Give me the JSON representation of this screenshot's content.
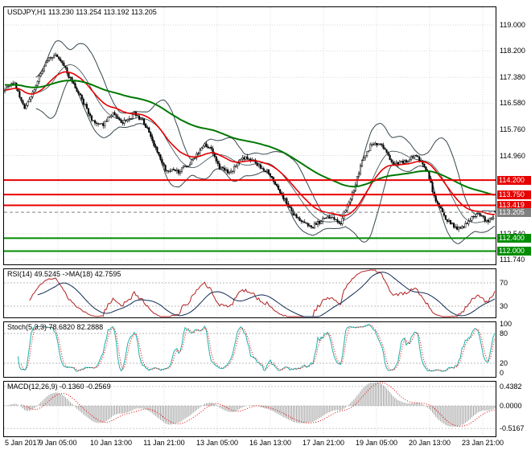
{
  "colors": {
    "background": "#ffffff",
    "panel_border": "#000000",
    "grid": "#d8d8d8",
    "candle": "#000000",
    "candle_bull_fill": "#ffffff",
    "bollinger": "#37474f",
    "ma_fast": "#e60000",
    "ma_slow": "#007800",
    "level_red": "#e80000",
    "level_green": "#008c00",
    "bid_gray": "#808080",
    "rsi_line": "#b22222",
    "rsi_ma": "#102a54",
    "stoch_main": "#20b2aa",
    "stoch_signal": "#e00000",
    "macd_hist": "#a0a0a0",
    "macd_signal": "#e00000",
    "text": "#000000"
  },
  "time_axis": {
    "labels": [
      "5 Jan 2017",
      "9 Jan 05:00",
      "10 Jan 13:00",
      "11 Jan 21:00",
      "13 Jan 05:00",
      "16 Jan 13:00",
      "17 Jan 21:00",
      "19 Jan 05:00",
      "20 Jan 13:00",
      "23 Jan 21:00"
    ]
  },
  "chart_data": [
    {
      "id": "price",
      "type": "candlestick",
      "symbol": "USDJPY",
      "timeframe": "H1",
      "title": "USDJPY,H1 113.230 113.254 113.192 113.205",
      "ohlc": {
        "open": 113.23,
        "high": 113.254,
        "low": 113.192,
        "close": 113.205
      },
      "y_range": [
        111.59,
        119.55
      ],
      "y_ticks": [
        "119.000",
        "118.200",
        "117.380",
        "116.580",
        "115.760",
        "114.960",
        "112.540",
        "111.740"
      ],
      "levels": [
        {
          "price": 114.2,
          "label": "114.200",
          "color": "red"
        },
        {
          "price": 113.75,
          "label": "113.750",
          "color": "red"
        },
        {
          "price": 113.419,
          "label": "113.419",
          "color": "red"
        },
        {
          "price": 113.205,
          "label": "113.205",
          "color": "gray"
        },
        {
          "price": 112.4,
          "label": "112.400",
          "color": "green"
        },
        {
          "price": 112.0,
          "label": "112.000",
          "color": "green"
        }
      ],
      "num_candles": 300,
      "price_path_anchors": [
        [
          0,
          116.95
        ],
        [
          6,
          117.15
        ],
        [
          12,
          116.45
        ],
        [
          19,
          117.2
        ],
        [
          26,
          117.9
        ],
        [
          31,
          118.15
        ],
        [
          37,
          117.65
        ],
        [
          44,
          116.85
        ],
        [
          53,
          116.1
        ],
        [
          60,
          115.95
        ],
        [
          66,
          116.25
        ],
        [
          72,
          116.05
        ],
        [
          79,
          116.3
        ],
        [
          85,
          115.9
        ],
        [
          92,
          115.15
        ],
        [
          98,
          114.55
        ],
        [
          106,
          114.4
        ],
        [
          113,
          114.8
        ],
        [
          121,
          115.35
        ],
        [
          125,
          115.2
        ],
        [
          131,
          114.55
        ],
        [
          138,
          114.45
        ],
        [
          145,
          114.8
        ],
        [
          153,
          114.75
        ],
        [
          160,
          114.55
        ],
        [
          167,
          113.9
        ],
        [
          174,
          113.35
        ],
        [
          181,
          112.9
        ],
        [
          187,
          112.6
        ],
        [
          194,
          112.95
        ],
        [
          199,
          113.1
        ],
        [
          205,
          112.85
        ],
        [
          212,
          113.8
        ],
        [
          218,
          114.9
        ],
        [
          224,
          115.35
        ],
        [
          230,
          115.2
        ],
        [
          236,
          114.75
        ],
        [
          244,
          114.7
        ],
        [
          251,
          114.95
        ],
        [
          258,
          114.55
        ],
        [
          263,
          113.6
        ],
        [
          269,
          112.95
        ],
        [
          276,
          112.7
        ],
        [
          282,
          112.85
        ],
        [
          288,
          113.05
        ],
        [
          294,
          112.9
        ],
        [
          299,
          113.2
        ]
      ],
      "overlays": {
        "bollinger": {
          "period": 20,
          "deviation": 2
        },
        "ma_fast_period": 30,
        "ma_slow_period": 110
      }
    },
    {
      "id": "rsi",
      "type": "line",
      "title": "RSI(14) 49.5245 ->MA(18) 42.7595",
      "period": 14,
      "ma_period": 18,
      "last_values": [
        49.5245,
        42.7595
      ],
      "level_lines": [
        70,
        30
      ],
      "y_ticks": [
        {
          "value": 70,
          "label": "70"
        },
        {
          "value": 30,
          "label": "30"
        }
      ]
    },
    {
      "id": "stochastic",
      "type": "line",
      "title": "Stoch(5,3,3) 78.6820 82.2888",
      "params": [
        5,
        3,
        3
      ],
      "last_values": [
        78.682,
        82.2888
      ],
      "level_lines": [
        80,
        20
      ],
      "y_ticks": [
        {
          "value": 100,
          "label": "100"
        },
        {
          "value": 80,
          "label": "80"
        },
        {
          "value": 20,
          "label": "20"
        },
        {
          "value": 0,
          "label": "0"
        }
      ]
    },
    {
      "id": "macd",
      "type": "histogram",
      "title": "MACD(12,26,9) -0.1360 -0.2569",
      "params": [
        12,
        26,
        9
      ],
      "last_values": [
        -0.136,
        -0.2569
      ],
      "level_lines": [
        0
      ],
      "y_ticks": [
        {
          "value": 0.4382,
          "label": "0.4382"
        },
        {
          "value": 0,
          "label": "0.0000"
        },
        {
          "value": -0.5167,
          "label": "-0.5167"
        }
      ]
    }
  ]
}
